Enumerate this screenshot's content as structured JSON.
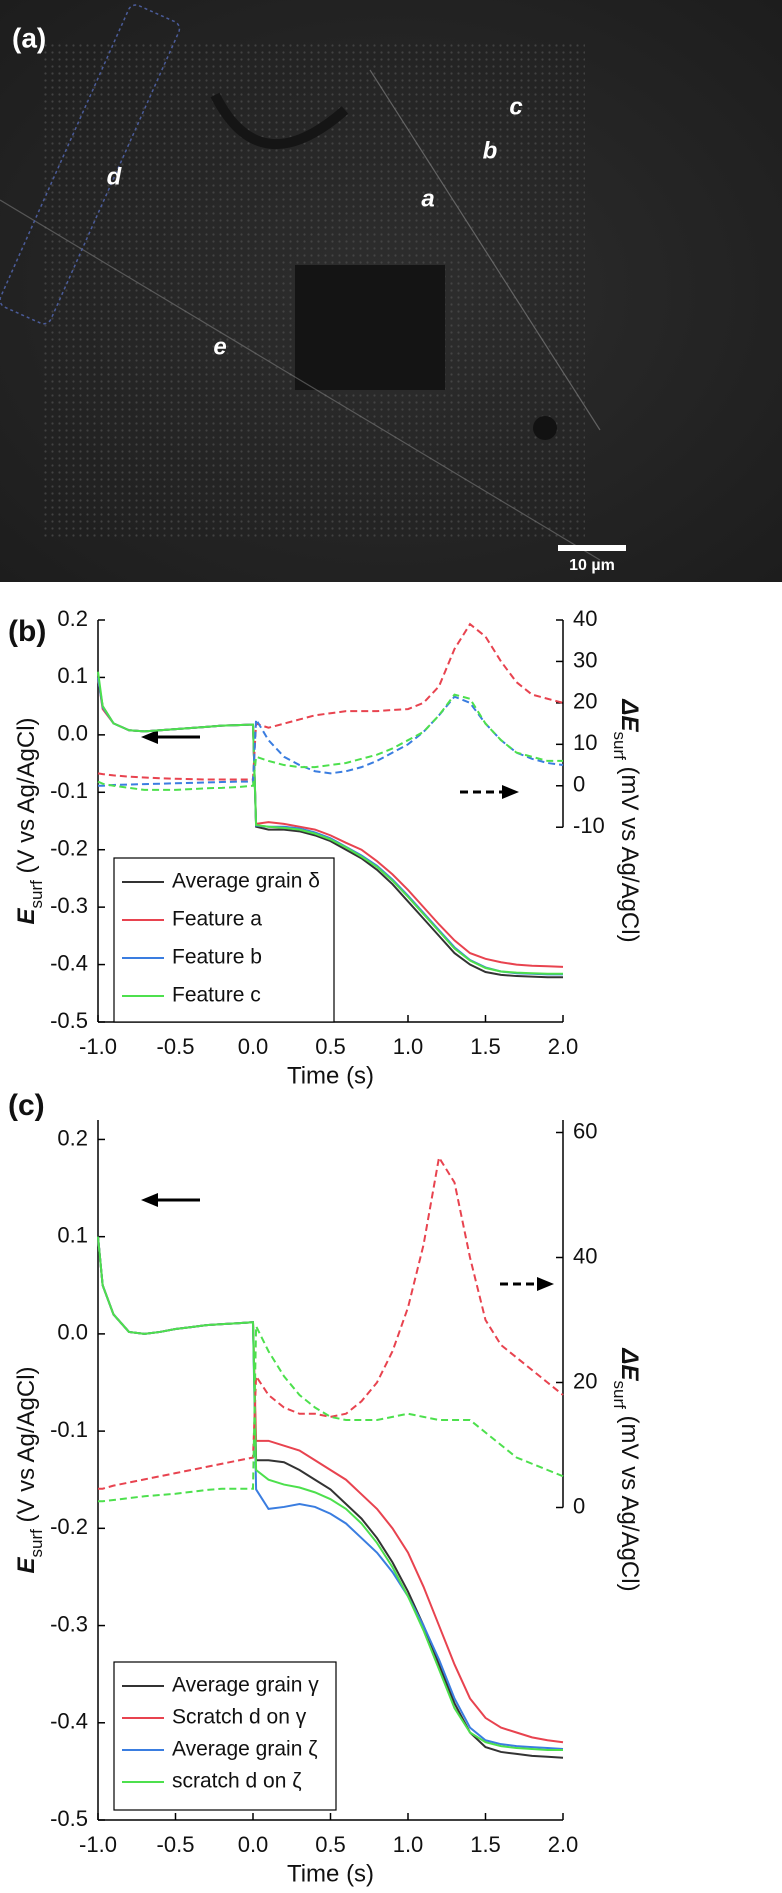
{
  "micrograph": {
    "panel_label": "(a)",
    "labels": [
      "a",
      "b",
      "c",
      "d",
      "e"
    ],
    "scale_bar": "10 µm"
  },
  "chart_data": [
    {
      "type": "line",
      "panel_label": "(b)",
      "xlabel": "Time (s)",
      "ylabel": {
        "main": "E",
        "sub": "surf",
        "rest": " (V vs Ag/AgCl)"
      },
      "y2label": {
        "main": "ΔE",
        "sub": "surf",
        "rest": " (mV vs Ag/AgCl)"
      },
      "xlim": [
        -1.0,
        2.0
      ],
      "xticks": [
        {
          "value": -1,
          "label": "-1.0"
        },
        -0.5,
        {
          "value": 0,
          "label": "0.0"
        },
        0.5,
        {
          "value": 1,
          "label": "1.0"
        },
        1.5,
        {
          "value": 2,
          "label": "2.0"
        }
      ],
      "ylim": [
        -0.5,
        0.2
      ],
      "yticks": [
        -0.5,
        -0.4,
        -0.3,
        -0.2,
        -0.1,
        {
          "value": 0,
          "label": "0.0"
        },
        0.1,
        0.2
      ],
      "y2lim": [
        -57,
        40
      ],
      "y2ticks": [
        -10,
        0,
        10,
        20,
        30,
        40
      ],
      "legend": "lower left",
      "x": [
        -1,
        -0.97,
        -0.9,
        -0.8,
        -0.7,
        -0.6,
        -0.5,
        -0.4,
        -0.3,
        -0.2,
        -0.1,
        0,
        0.02,
        0.1,
        0.2,
        0.3,
        0.4,
        0.5,
        0.6,
        0.7,
        0.8,
        0.9,
        1.0,
        1.1,
        1.2,
        1.3,
        1.4,
        1.5,
        1.6,
        1.7,
        1.8,
        1.9,
        2.0
      ],
      "series": [
        {
          "name": "Average grain δ",
          "color": "#333333",
          "values": [
            0.1,
            0.05,
            0.02,
            0.008,
            0.006,
            0.008,
            0.01,
            0.012,
            0.014,
            0.016,
            0.017,
            0.018,
            -0.16,
            -0.165,
            -0.165,
            -0.168,
            -0.175,
            -0.185,
            -0.2,
            -0.215,
            -0.235,
            -0.26,
            -0.29,
            -0.32,
            -0.35,
            -0.38,
            -0.4,
            -0.413,
            -0.418,
            -0.42,
            -0.421,
            -0.422,
            -0.422
          ]
        },
        {
          "name": "Feature a",
          "color": "#e8434f",
          "values": [
            0.1,
            0.045,
            0.02,
            0.008,
            0.006,
            0.008,
            0.01,
            0.012,
            0.014,
            0.016,
            0.017,
            0.018,
            -0.155,
            -0.152,
            -0.155,
            -0.16,
            -0.165,
            -0.175,
            -0.188,
            -0.2,
            -0.22,
            -0.243,
            -0.27,
            -0.3,
            -0.33,
            -0.358,
            -0.38,
            -0.39,
            -0.396,
            -0.4,
            -0.402,
            -0.403,
            -0.404
          ]
        },
        {
          "name": "Feature b",
          "color": "#3a7de0",
          "values": [
            0.1,
            0.048,
            0.02,
            0.008,
            0.006,
            0.008,
            0.01,
            0.012,
            0.014,
            0.016,
            0.017,
            0.018,
            -0.158,
            -0.16,
            -0.16,
            -0.163,
            -0.17,
            -0.18,
            -0.195,
            -0.21,
            -0.228,
            -0.252,
            -0.28,
            -0.31,
            -0.34,
            -0.37,
            -0.392,
            -0.405,
            -0.412,
            -0.415,
            -0.416,
            -0.417,
            -0.417
          ]
        },
        {
          "name": "Feature c",
          "color": "#4de04d",
          "values": [
            0.11,
            0.05,
            0.02,
            0.008,
            0.006,
            0.008,
            0.01,
            0.012,
            0.014,
            0.016,
            0.017,
            0.018,
            -0.157,
            -0.16,
            -0.162,
            -0.165,
            -0.172,
            -0.182,
            -0.196,
            -0.212,
            -0.23,
            -0.254,
            -0.282,
            -0.312,
            -0.342,
            -0.372,
            -0.393,
            -0.406,
            -0.412,
            -0.414,
            -0.415,
            -0.416,
            -0.416
          ]
        },
        {
          "color": "#e8434f",
          "axis": "y2",
          "values": [
            3,
            2.8,
            2.5,
            2.2,
            2,
            1.8,
            1.7,
            1.6,
            1.5,
            1.5,
            1.5,
            1.5,
            15,
            14,
            15,
            16,
            17,
            17.5,
            18,
            18,
            18,
            18.3,
            18.5,
            20,
            24,
            33,
            39,
            36,
            30,
            25,
            22,
            21,
            20
          ]
        },
        {
          "color": "#3a7de0",
          "axis": "y2",
          "values": [
            0,
            0,
            0.2,
            0.3,
            0.4,
            0.5,
            0.6,
            0.7,
            0.8,
            0.9,
            1,
            1,
            16,
            11,
            7,
            5,
            3.5,
            3,
            3.5,
            4.5,
            6,
            8,
            10,
            13,
            17,
            21.5,
            20,
            15,
            11,
            8,
            6.5,
            5.5,
            5
          ]
        },
        {
          "color": "#4de04d",
          "axis": "y2",
          "values": [
            1,
            0.5,
            0,
            -0.5,
            -1,
            -1,
            -1,
            -0.8,
            -0.6,
            -0.5,
            -0.3,
            0,
            7,
            6,
            5,
            4.5,
            4.5,
            5,
            5.5,
            6.5,
            7.5,
            9,
            11,
            13,
            17,
            22,
            21,
            15,
            11,
            8,
            7,
            6,
            6
          ]
        }
      ]
    },
    {
      "type": "line",
      "panel_label": "(c)",
      "xlabel": "Time (s)",
      "ylabel": {
        "main": "E",
        "sub": "surf",
        "rest": " (V vs Ag/AgCl)"
      },
      "y2label": {
        "main": "ΔE",
        "sub": "surf",
        "rest": " (mV vs Ag/AgCl)"
      },
      "xlim": [
        -1.0,
        2.0
      ],
      "xticks": [
        {
          "value": -1,
          "label": "-1.0"
        },
        -0.5,
        {
          "value": 0,
          "label": "0.0"
        },
        0.5,
        {
          "value": 1,
          "label": "1.0"
        },
        1.5,
        {
          "value": 2,
          "label": "2.0"
        }
      ],
      "ylim": [
        -0.5,
        0.22
      ],
      "yticks": [
        -0.5,
        -0.4,
        -0.3,
        -0.2,
        -0.1,
        {
          "value": 0,
          "label": "0.0"
        },
        0.1,
        0.2
      ],
      "y2lim": [
        -50,
        62
      ],
      "y2ticks": [
        0,
        20,
        40,
        60
      ],
      "legend": "lower left",
      "x": [
        -1,
        -0.97,
        -0.9,
        -0.8,
        -0.7,
        -0.6,
        -0.5,
        -0.4,
        -0.3,
        -0.2,
        -0.1,
        0,
        0.02,
        0.1,
        0.2,
        0.3,
        0.4,
        0.5,
        0.6,
        0.7,
        0.8,
        0.9,
        1.0,
        1.1,
        1.2,
        1.3,
        1.4,
        1.5,
        1.6,
        1.7,
        1.8,
        1.9,
        2.0
      ],
      "series": [
        {
          "name": "Average grain γ",
          "color": "#333333",
          "values": [
            0.1,
            0.05,
            0.02,
            0.002,
            0,
            0.002,
            0.005,
            0.007,
            0.009,
            0.01,
            0.011,
            0.012,
            -0.13,
            -0.13,
            -0.132,
            -0.14,
            -0.15,
            -0.16,
            -0.175,
            -0.19,
            -0.21,
            -0.235,
            -0.265,
            -0.3,
            -0.34,
            -0.38,
            -0.41,
            -0.425,
            -0.43,
            -0.432,
            -0.434,
            -0.435,
            -0.436
          ]
        },
        {
          "name": "Scratch d on γ",
          "color": "#e8434f",
          "values": [
            0.1,
            0.05,
            0.02,
            0.002,
            0,
            0.002,
            0.005,
            0.007,
            0.009,
            0.01,
            0.011,
            0.012,
            -0.11,
            -0.11,
            -0.115,
            -0.12,
            -0.13,
            -0.14,
            -0.15,
            -0.165,
            -0.18,
            -0.2,
            -0.225,
            -0.26,
            -0.3,
            -0.34,
            -0.375,
            -0.395,
            -0.405,
            -0.41,
            -0.415,
            -0.418,
            -0.42
          ]
        },
        {
          "name": "Average grain ζ",
          "color": "#3a7de0",
          "values": [
            0.1,
            0.05,
            0.02,
            0.002,
            0,
            0.002,
            0.005,
            0.007,
            0.009,
            0.01,
            0.011,
            0.012,
            -0.16,
            -0.18,
            -0.178,
            -0.175,
            -0.178,
            -0.185,
            -0.195,
            -0.21,
            -0.225,
            -0.245,
            -0.27,
            -0.3,
            -0.335,
            -0.375,
            -0.405,
            -0.418,
            -0.422,
            -0.424,
            -0.425,
            -0.426,
            -0.427
          ]
        },
        {
          "name": "scratch d on ζ",
          "color": "#4de04d",
          "values": [
            0.1,
            0.05,
            0.02,
            0.002,
            0,
            0.002,
            0.005,
            0.007,
            0.009,
            0.01,
            0.011,
            0.012,
            -0.14,
            -0.15,
            -0.155,
            -0.158,
            -0.163,
            -0.17,
            -0.18,
            -0.195,
            -0.215,
            -0.24,
            -0.27,
            -0.305,
            -0.345,
            -0.385,
            -0.41,
            -0.42,
            -0.424,
            -0.426,
            -0.427,
            -0.428,
            -0.428
          ]
        },
        {
          "color": "#e8434f",
          "axis": "y2",
          "values": [
            3,
            3,
            3.5,
            4,
            4.5,
            5,
            5.5,
            6,
            6.5,
            7,
            7.5,
            8,
            21,
            18,
            16,
            15,
            15,
            14.5,
            15,
            17,
            20,
            25,
            32,
            42,
            56,
            52,
            40,
            30,
            26,
            24,
            22,
            20,
            18
          ]
        },
        {
          "color": "#4de04d",
          "axis": "y2",
          "values": [
            1,
            1,
            1.2,
            1.5,
            1.8,
            2,
            2.2,
            2.5,
            2.8,
            3,
            3,
            3,
            29,
            25,
            21,
            18,
            16,
            14.5,
            14,
            14,
            14,
            14.5,
            15,
            14.5,
            14,
            14,
            14,
            12,
            10,
            8,
            7,
            6,
            5
          ]
        }
      ]
    }
  ]
}
